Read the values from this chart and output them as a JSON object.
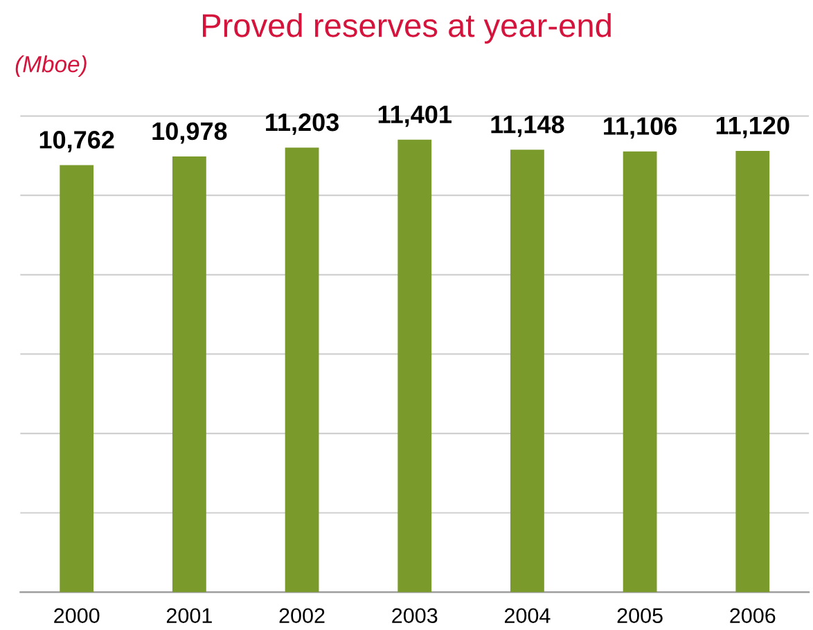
{
  "chart_data": {
    "type": "bar",
    "title": "Proved reserves at year-end",
    "ylabel": "(Mboe)",
    "categories": [
      "2000",
      "2001",
      "2002",
      "2003",
      "2004",
      "2005",
      "2006"
    ],
    "values": [
      10762,
      10978,
      11203,
      11401,
      11148,
      11106,
      11120
    ],
    "value_labels": [
      "10,762",
      "10,978",
      "11,203",
      "11,401",
      "11,148",
      "11,106",
      "11,120"
    ],
    "color": "#7a9a2b",
    "grid": "y"
  }
}
